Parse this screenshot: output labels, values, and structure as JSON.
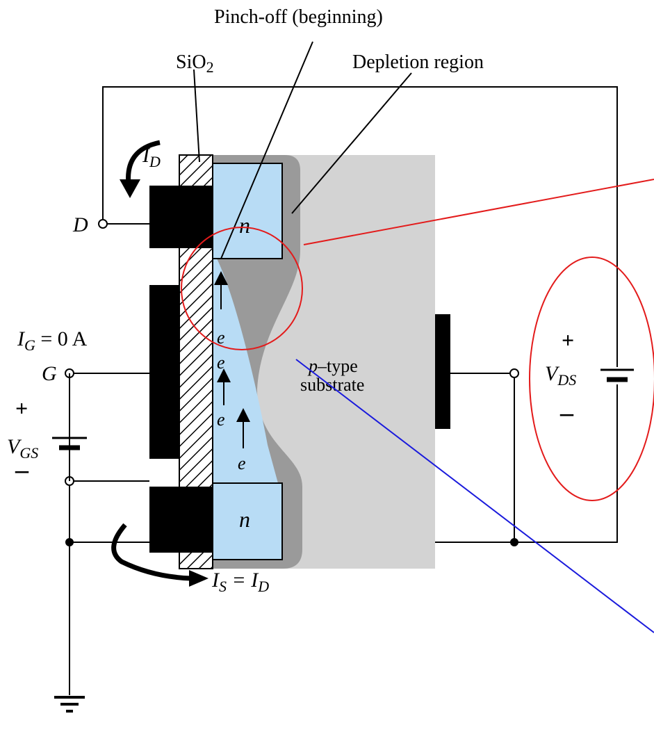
{
  "labels": {
    "pinch_off": "Pinch-off (beginning)",
    "sio2": "SiO",
    "sio2_sub": "2",
    "depletion": "Depletion region",
    "id_current": "I",
    "id_sub": "D",
    "drain": "D",
    "source_n": "n",
    "drain_n": "n",
    "ig_label": "I",
    "ig_sub": "G",
    "ig_value": " = 0 A",
    "gate": "G",
    "vgs_plus": "+",
    "vgs": "V",
    "vgs_sub": "GS",
    "vgs_minus": "–",
    "substrate_line1": "p–type",
    "substrate_line2": "substrate",
    "vds_plus": "+",
    "vds": "V",
    "vds_sub": "DS",
    "vds_minus": "–",
    "is_label": "I",
    "is_sub": "S",
    "is_eq": " = I",
    "is_eq_sub": "D",
    "electron": "e"
  },
  "colors": {
    "n_region": "#b8dcf5",
    "substrate": "#d3d3d3",
    "depletion": "#9a9a9a",
    "metal": "#000000",
    "annotation_red": "#e31b1b",
    "annotation_blue": "#1a1adc"
  }
}
